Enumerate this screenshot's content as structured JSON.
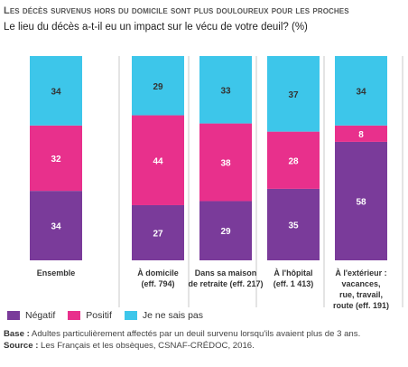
{
  "title": "Les décès survenus hors du domicile sont plus douloureux pour les proches",
  "subtitle": "Le lieu du décès a-t-il eu un impact sur le vécu de votre deuil? (%)",
  "colors": {
    "negatif": "#7a3b9a",
    "positif": "#e8308c",
    "nsp": "#3dc6ea"
  },
  "chart_data": {
    "type": "bar",
    "stacked": true,
    "categories": [
      "Ensemble",
      "À domicile (eff. 794)",
      "Dans sa maison de retraite (eff. 217)",
      "À l'hôpital (eff. 1 413)",
      "À l'extérieur : vacances, rue, travail, route (eff. 191)"
    ],
    "series": [
      {
        "name": "Négatif",
        "values": [
          34,
          27,
          29,
          35,
          58
        ]
      },
      {
        "name": "Positif",
        "values": [
          32,
          44,
          38,
          28,
          8
        ]
      },
      {
        "name": "Je ne sais pas",
        "values": [
          34,
          29,
          33,
          37,
          34
        ]
      }
    ],
    "ylim": [
      0,
      100
    ],
    "grid": false,
    "legend_position": "bottom-left"
  },
  "category_labels": [
    [
      "Ensemble"
    ],
    [
      "À domicile",
      "(eff. 794)"
    ],
    [
      "Dans sa maison",
      "de retraite (eff. 217)"
    ],
    [
      "À l'hôpital",
      "(eff. 1 413)"
    ],
    [
      "À l'extérieur :",
      "vacances,",
      "rue, travail,",
      "route (eff. 191)"
    ]
  ],
  "legend": {
    "negatif": "Négatif",
    "positif": "Positif",
    "nsp": "Je ne sais pas"
  },
  "footer": {
    "base_label": "Base :",
    "base_text": " Adultes particulièrement affectés par un deuil survenu lorsqu'ils avaient plus de 3 ans.",
    "source_label": "Source :",
    "source_text": " Les Français et les obsèques, CSNAF-CRÉDOC, 2016."
  }
}
